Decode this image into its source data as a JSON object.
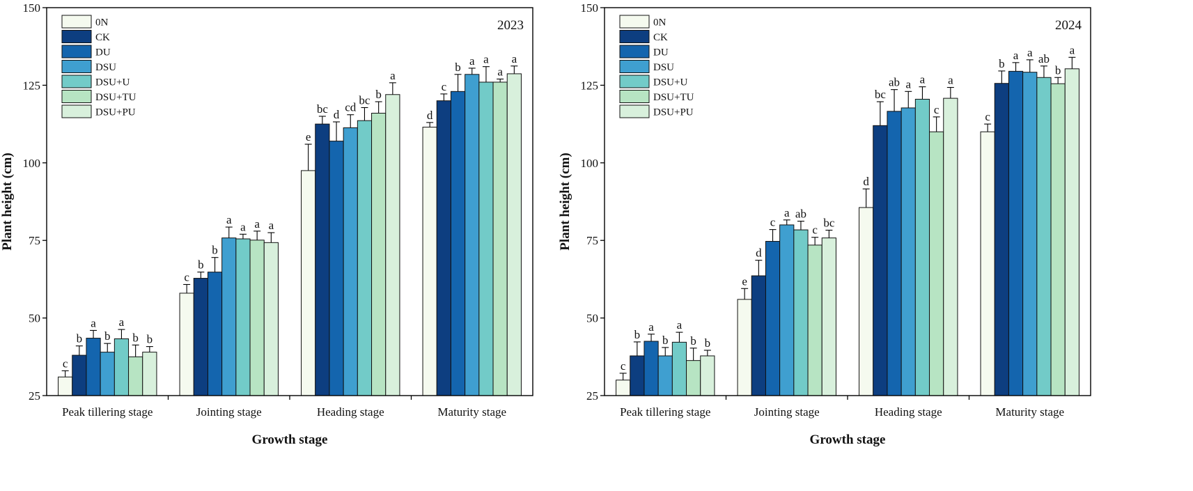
{
  "chart_data": [
    {
      "type": "bar",
      "title": "2023",
      "xlabel": "Growth stage",
      "ylabel": "Plant height  (cm)",
      "ylim": [
        25,
        150
      ],
      "yticks": [
        25,
        50,
        75,
        100,
        125,
        150
      ],
      "legend_position": "top-left",
      "categories": [
        "Peak tillering stage",
        "Jointing stage",
        "Heading stage",
        "Maturity stage"
      ],
      "series": [
        {
          "name": "0N",
          "color": "#f5faef",
          "values": [
            31.0,
            58.0,
            97.5,
            111.5
          ],
          "errors": [
            2.0,
            2.8,
            8.5,
            1.5
          ],
          "letters": [
            "c",
            "c",
            "e",
            "d"
          ]
        },
        {
          "name": "CK",
          "color": "#0d3e80",
          "values": [
            38.0,
            62.8,
            112.5,
            120.0
          ],
          "errors": [
            3.0,
            2.0,
            2.5,
            2.2
          ],
          "letters": [
            "b",
            "b",
            "bc",
            "c"
          ]
        },
        {
          "name": "DU",
          "color": "#1465ae",
          "values": [
            43.5,
            64.8,
            107.0,
            123.0
          ],
          "errors": [
            2.5,
            4.7,
            6.2,
            5.5
          ],
          "letters": [
            "a",
            "b",
            "d",
            "b"
          ]
        },
        {
          "name": "DSU",
          "color": "#3f9fd0",
          "values": [
            39.0,
            75.8,
            111.3,
            128.5
          ],
          "errors": [
            2.8,
            3.5,
            4.2,
            2.0
          ],
          "letters": [
            "b",
            "a",
            "cd",
            "a"
          ]
        },
        {
          "name": "DSU+U",
          "color": "#72cbc8",
          "values": [
            43.3,
            75.5,
            113.6,
            126.0
          ],
          "errors": [
            3.0,
            1.5,
            4.2,
            5.0
          ],
          "letters": [
            "a",
            "a",
            "bc",
            "a"
          ]
        },
        {
          "name": "DSU+TU",
          "color": "#b7e4c3",
          "values": [
            37.5,
            75.1,
            116.0,
            126.0
          ],
          "errors": [
            3.8,
            2.9,
            3.7,
            1.0
          ],
          "letters": [
            "b",
            "a",
            "b",
            "a"
          ]
        },
        {
          "name": "DSU+PU",
          "color": "#d8f0dc",
          "values": [
            39.0,
            74.3,
            122.0,
            128.7
          ],
          "errors": [
            1.8,
            3.2,
            3.8,
            2.5
          ],
          "letters": [
            "b",
            "a",
            "a",
            "a"
          ]
        }
      ]
    },
    {
      "type": "bar",
      "title": "2024",
      "xlabel": "Growth stage",
      "ylabel": "Plant height  (cm)",
      "ylim": [
        25,
        150
      ],
      "yticks": [
        25,
        50,
        75,
        100,
        125,
        150
      ],
      "legend_position": "top-left",
      "categories": [
        "Peak tillering stage",
        "Jointing stage",
        "Heading stage",
        "Maturity stage"
      ],
      "series": [
        {
          "name": "0N",
          "color": "#f5faef",
          "values": [
            30.0,
            56.0,
            85.6,
            110.0
          ],
          "errors": [
            2.2,
            3.5,
            6.0,
            2.5
          ],
          "letters": [
            "c",
            "e",
            "d",
            "c"
          ]
        },
        {
          "name": "CK",
          "color": "#0d3e80",
          "values": [
            37.8,
            63.6,
            112.0,
            125.6
          ],
          "errors": [
            4.5,
            5.0,
            7.7,
            4.0
          ],
          "letters": [
            "b",
            "d",
            "bc",
            "b"
          ]
        },
        {
          "name": "DU",
          "color": "#1465ae",
          "values": [
            42.5,
            74.7,
            116.6,
            129.5
          ],
          "errors": [
            2.3,
            3.8,
            7.0,
            2.8
          ],
          "letters": [
            "a",
            "c",
            "ab",
            "a"
          ]
        },
        {
          "name": "DSU",
          "color": "#3f9fd0",
          "values": [
            37.8,
            80.0,
            117.7,
            129.2
          ],
          "errors": [
            2.7,
            1.6,
            5.3,
            4.0
          ],
          "letters": [
            "b",
            "a",
            "a",
            "a"
          ]
        },
        {
          "name": "DSU+U",
          "color": "#72cbc8",
          "values": [
            42.2,
            78.4,
            120.5,
            127.5
          ],
          "errors": [
            3.2,
            2.8,
            4.0,
            3.7
          ],
          "letters": [
            "a",
            "ab",
            "a",
            "ab"
          ]
        },
        {
          "name": "DSU+TU",
          "color": "#b7e4c3",
          "values": [
            36.3,
            73.5,
            110.0,
            125.5
          ],
          "errors": [
            4.0,
            2.5,
            4.8,
            2.0
          ],
          "letters": [
            "b",
            "c",
            "c",
            "b"
          ]
        },
        {
          "name": "DSU+PU",
          "color": "#d8f0dc",
          "values": [
            37.8,
            75.8,
            120.8,
            130.3
          ],
          "errors": [
            1.8,
            2.5,
            3.5,
            3.7
          ],
          "letters": [
            "b",
            "bc",
            "a",
            "a"
          ]
        }
      ]
    }
  ]
}
